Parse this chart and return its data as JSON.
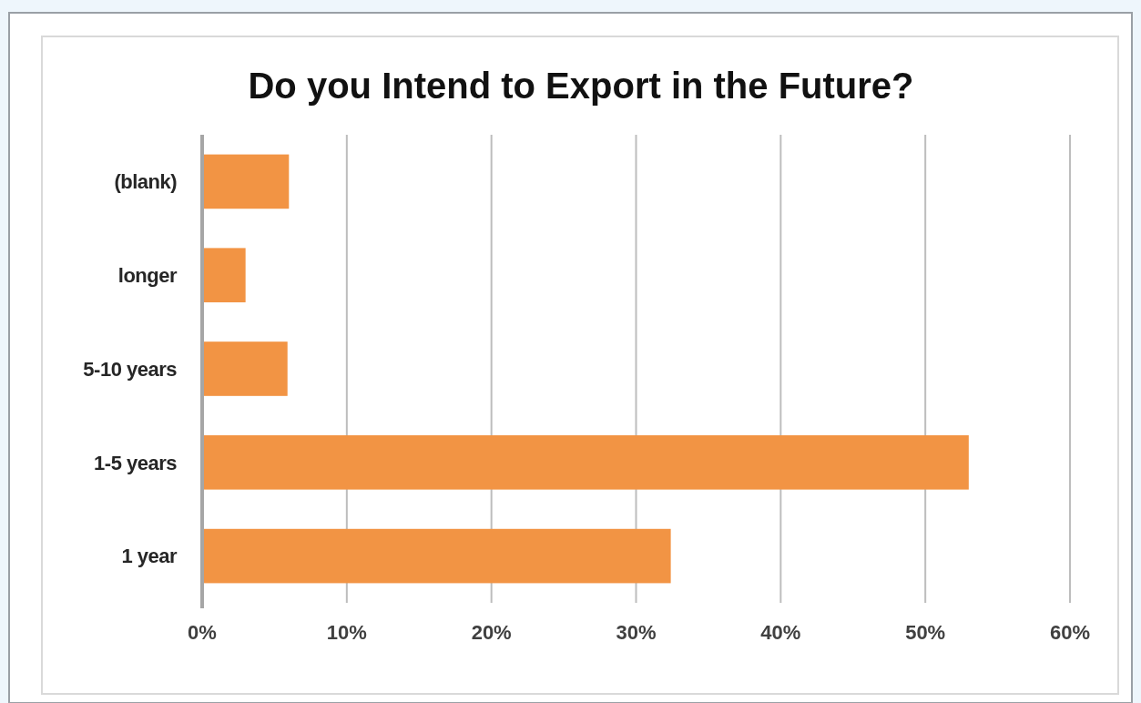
{
  "chart_data": {
    "type": "bar",
    "orientation": "horizontal",
    "title": "Do you Intend to Export in the Future?",
    "categories": [
      "(blank)",
      "longer",
      "5-10 years",
      "1-5 years",
      "1 year"
    ],
    "values": [
      6,
      3,
      5.9,
      53,
      32.4
    ],
    "color": "#f29444",
    "xlim": [
      0,
      60
    ],
    "xticks": [
      {
        "value": 0,
        "label": "0%"
      },
      {
        "value": 10,
        "label": "10%"
      },
      {
        "value": 20,
        "label": "20%"
      },
      {
        "value": 30,
        "label": "30%"
      },
      {
        "value": 40,
        "label": "40%"
      },
      {
        "value": 50,
        "label": "50%"
      },
      {
        "value": 60,
        "label": "60%"
      }
    ],
    "grid": "x"
  }
}
